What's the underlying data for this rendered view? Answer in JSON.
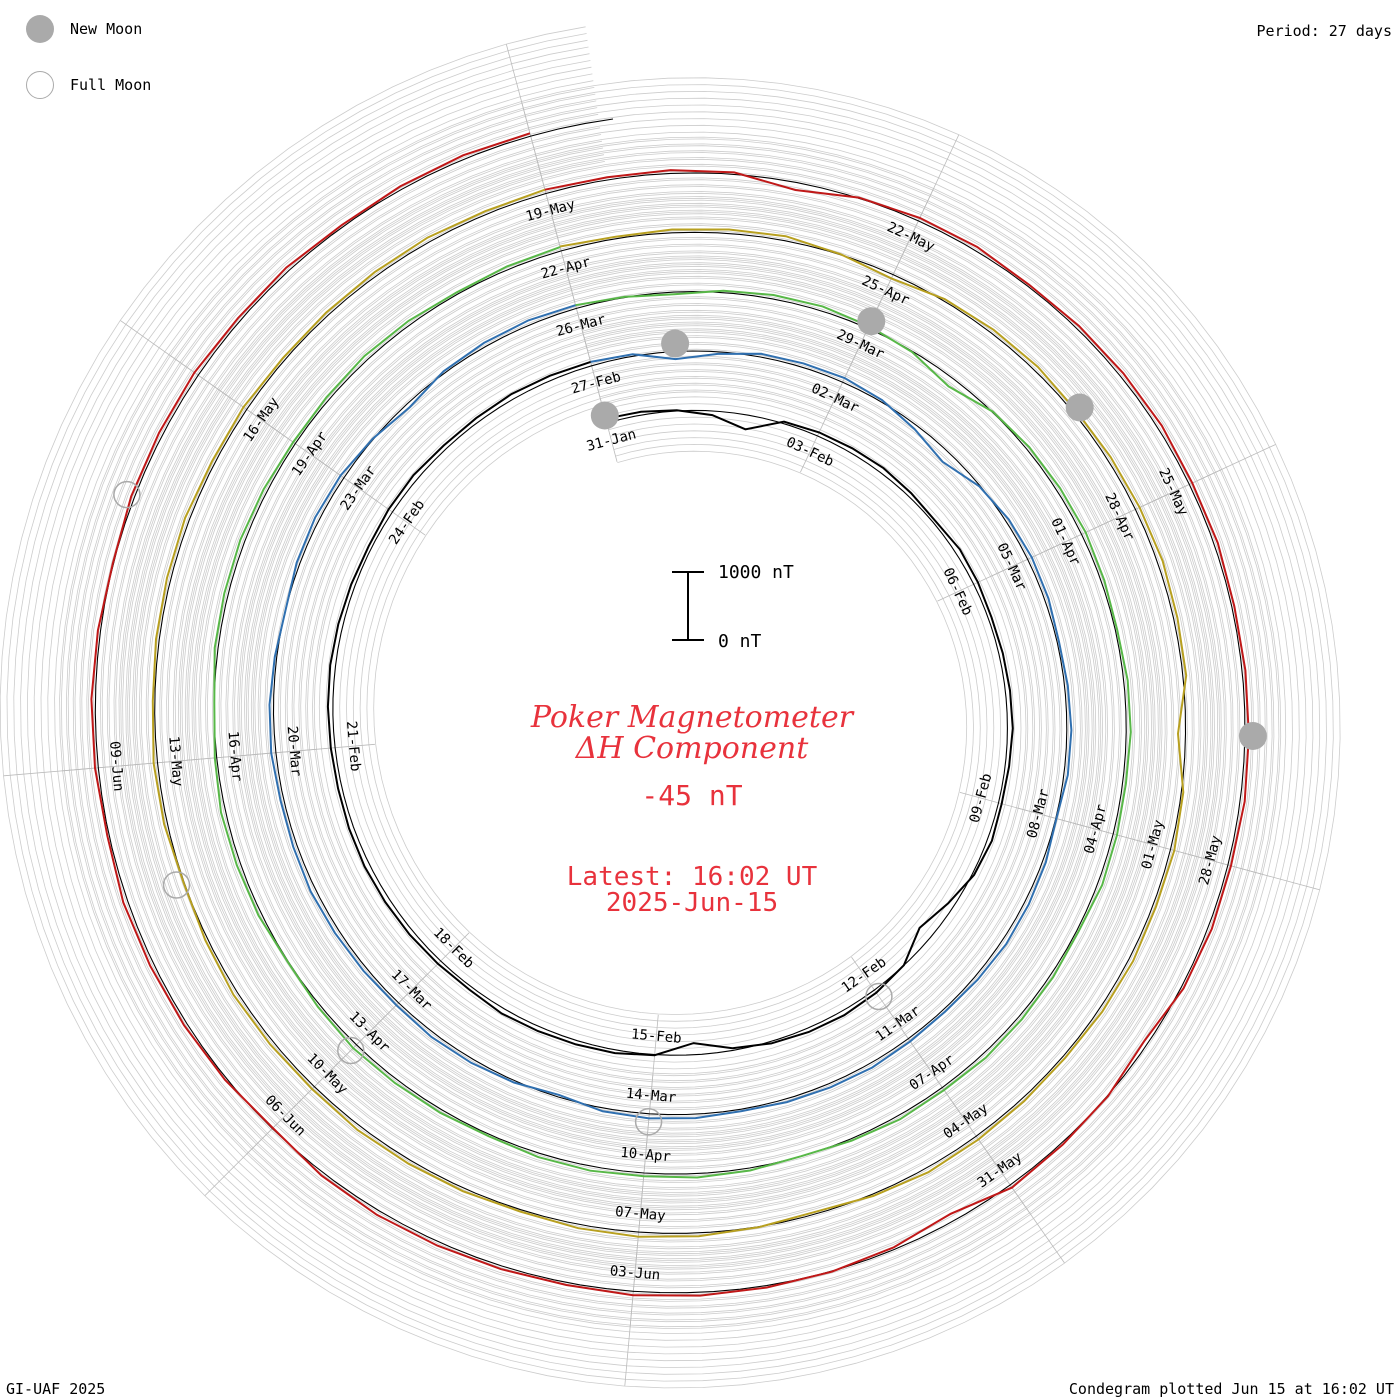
{
  "header": {
    "period": "Period: 27 days"
  },
  "legend": {
    "new_moon": "New Moon",
    "full_moon": "Full Moon"
  },
  "footer": {
    "credit": "GI-UAF 2025",
    "plotted": "Condegram plotted Jun 15 at 16:02 UT"
  },
  "center": {
    "title_line1": "Poker Magnetometer",
    "title_line2": "ΔH Component",
    "current_value": "-45 nT",
    "latest_line": "Latest: 16:02 UT",
    "latest_date": "2025-Jun-15",
    "title_color": "#e8323c"
  },
  "scale_bar": {
    "top_label": "1000 nT",
    "bottom_label": "0 nT",
    "top_value": 1000,
    "bottom_value": 0
  },
  "chart_data": {
    "type": "line",
    "layout": "condegram-spiral",
    "period_days": 27,
    "start_date": "2025-01-31",
    "end": "2025-06-15 16:02 UT",
    "unit": "nT",
    "grid": true,
    "date_labels": [
      "31-Jan",
      "03-Feb",
      "06-Feb",
      "09-Feb",
      "12-Feb",
      "15-Feb",
      "18-Feb",
      "21-Feb",
      "24-Feb",
      "27-Feb",
      "02-Mar",
      "05-Mar",
      "08-Mar",
      "11-Mar",
      "14-Mar",
      "17-Mar",
      "20-Mar",
      "23-Mar",
      "26-Mar",
      "29-Mar",
      "01-Apr",
      "04-Apr",
      "07-Apr",
      "10-Apr",
      "13-Apr",
      "16-Apr",
      "19-Apr",
      "22-Apr",
      "25-Apr",
      "28-Apr",
      "01-May",
      "04-May",
      "07-May",
      "10-May",
      "13-May",
      "16-May",
      "19-May",
      "22-May",
      "25-May",
      "28-May",
      "31-May",
      "03-Jun",
      "06-Jun",
      "09-Jun"
    ],
    "new_moons": [
      "2025-01-29",
      "2025-02-28",
      "2025-03-29",
      "2025-04-27",
      "2025-05-27"
    ],
    "full_moons": [
      "2025-02-12",
      "2025-03-14",
      "2025-04-13",
      "2025-05-12",
      "2025-06-11"
    ],
    "colors": [
      "#000000",
      "#1a0e6e",
      "#2330a8",
      "#3070b0",
      "#2f9da8",
      "#30b48c",
      "#58b848",
      "#9ab830",
      "#b8a020",
      "#c07018",
      "#b85010",
      "#c01818"
    ],
    "series": [
      {
        "date": "2025-01-31",
        "v": [
          -20,
          -40,
          -80,
          -150,
          -300,
          -60,
          -30,
          -20,
          -10,
          -30,
          -50,
          -10,
          -20,
          -40,
          -30,
          -20,
          -10,
          -30,
          -40,
          -20,
          -60,
          -180,
          -300,
          -90,
          -40,
          -20,
          -30,
          -60,
          -120,
          -260,
          -80,
          -40,
          -30,
          -20,
          -10,
          -40,
          -30,
          -20,
          -15,
          -10,
          -20,
          -30,
          -25,
          -15,
          -10,
          -20,
          -30,
          -40,
          -20,
          -10,
          -30,
          -25,
          -10,
          -20,
          -30
        ]
      },
      {
        "date": "2025-02-27",
        "v": [
          -30,
          -60,
          -200,
          -120,
          -40,
          -30,
          -20,
          -60,
          -150,
          -250,
          -100,
          -40,
          -20,
          -30,
          -60,
          -40,
          -20,
          -30,
          -80,
          -40,
          -20,
          -10,
          -30,
          -50,
          -40,
          -20,
          -30,
          -40,
          -60,
          -30,
          -20,
          -40,
          -120,
          -60,
          -30,
          -20,
          -40,
          -30,
          -20,
          -10,
          -30,
          -40,
          -20,
          -30,
          -60,
          -90,
          -40,
          -20,
          -30,
          -80,
          -150,
          -60,
          -30,
          -20,
          -40
        ]
      },
      {
        "date": "2025-03-26",
        "v": [
          -40,
          -80,
          -120,
          -60,
          -30,
          -20,
          -50,
          -100,
          -220,
          -80,
          -40,
          -30,
          -20,
          -40,
          -60,
          -30,
          -20,
          -40,
          -30,
          -20,
          -60,
          -40,
          -30,
          -20,
          -40,
          -30,
          -60,
          -90,
          -50,
          -30,
          -40,
          -20,
          -30,
          -60,
          -40,
          -30,
          -20,
          -50,
          -80,
          -40,
          -30,
          -20,
          -60,
          -90,
          -40,
          -30,
          -20,
          -30,
          -50,
          -40,
          -20,
          -30,
          -60,
          -40,
          -30
        ]
      },
      {
        "date": "2025-04-22",
        "v": [
          -20,
          -60,
          -40,
          -30,
          -20,
          -80,
          -150,
          -60,
          -30,
          -20,
          -40,
          -30,
          -20,
          -10,
          -30,
          -40,
          -200,
          -60,
          -30,
          -40,
          -20,
          -30,
          -50,
          -40,
          -30,
          -20,
          -60,
          -120,
          -80,
          -40,
          -20,
          -30,
          -60,
          -40,
          -30,
          -20,
          -40,
          -30,
          -20,
          -50,
          -80,
          -40,
          -30,
          -60,
          -40,
          -30,
          -20,
          -40,
          -30,
          -50,
          -40,
          -30,
          -20,
          -40,
          -30
        ]
      },
      {
        "date": "2025-05-19",
        "v": [
          -30,
          -50,
          -40,
          -60,
          -200,
          -80,
          -40,
          -30,
          -60,
          -40,
          -30,
          -20,
          -40,
          -30,
          -50,
          -40,
          -30,
          -20,
          -40,
          -30,
          -50,
          -150,
          -80,
          -60,
          -40,
          -200,
          -120,
          -80,
          -60,
          -40,
          -30,
          -50,
          -40,
          -30,
          -20,
          -40,
          -100,
          -60,
          -40,
          -30,
          -20,
          -60,
          -40,
          -30,
          -50,
          -80,
          -40,
          -30,
          -20,
          -40,
          -30,
          -60,
          -40,
          -30,
          -45
        ]
      }
    ]
  }
}
